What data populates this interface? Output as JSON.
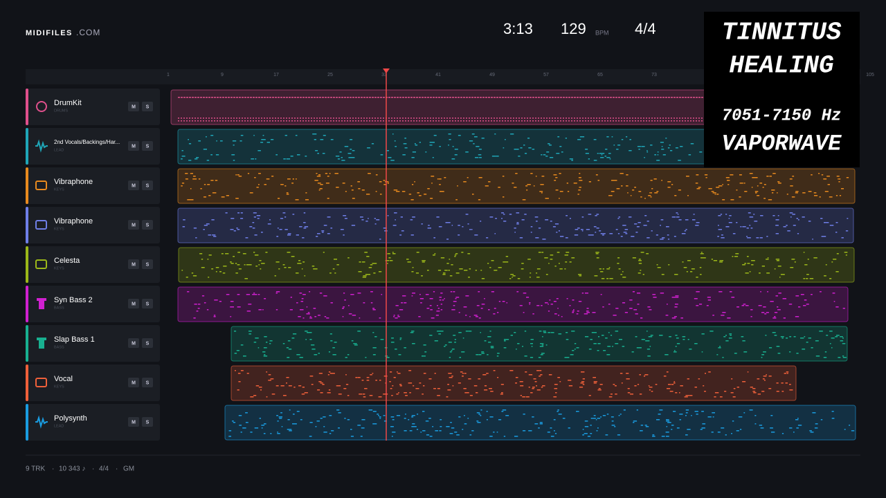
{
  "header": {
    "brand": "MIDIFILES",
    "brand_suffix": ".COM",
    "time": "3:13",
    "tempo": "129",
    "tempo_unit": "BPM",
    "meter": "4/4"
  },
  "overlay": {
    "line1": "TINNITUS",
    "line2": "HEALING",
    "line3": "7051-7150 Hz",
    "line4": "VAPORWAVE"
  },
  "ruler": [
    1,
    9,
    17,
    25,
    33,
    41,
    49,
    57,
    65,
    73,
    105
  ],
  "buttons": {
    "mute": "M",
    "solo": "S"
  },
  "tracks": [
    {
      "name": "DrumKit",
      "category": "DRUMS",
      "color": "#e0508c"
    },
    {
      "name": "2nd Vocals/Backings/Har...",
      "category": "LEAD",
      "color": "#1fa6b8"
    },
    {
      "name": "Vibraphone",
      "category": "KEYS",
      "color": "#e88a1e"
    },
    {
      "name": "Vibraphone",
      "category": "KEYS",
      "color": "#6f7fe8"
    },
    {
      "name": "Celesta",
      "category": "KEYS",
      "color": "#9cb819"
    },
    {
      "name": "Syn Bass 2",
      "category": "BASS",
      "color": "#d020d0"
    },
    {
      "name": "Slap Bass 1",
      "category": "BASS",
      "color": "#18b090"
    },
    {
      "name": "Vocal",
      "category": "KEYS",
      "color": "#f0603a"
    },
    {
      "name": "Polysynth",
      "category": "LEAD",
      "color": "#1a9ce0"
    }
  ],
  "footer": {
    "tracks": "9 TRK",
    "notes": "10 343 ♪",
    "meter": "4/4",
    "standard": "GM",
    "separator": "·"
  }
}
